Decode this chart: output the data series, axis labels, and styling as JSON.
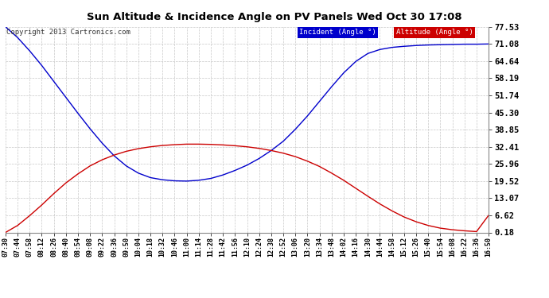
{
  "title": "Sun Altitude & Incidence Angle on PV Panels Wed Oct 30 17:08",
  "copyright": "Copyright 2013 Cartronics.com",
  "legend_incident": "Incident (Angle °)",
  "legend_altitude": "Altitude (Angle °)",
  "yticks": [
    0.18,
    6.62,
    13.07,
    19.52,
    25.96,
    32.41,
    38.85,
    45.3,
    51.74,
    58.19,
    64.64,
    71.08,
    77.53
  ],
  "ymin": 0.18,
  "ymax": 77.53,
  "bg_color": "#ffffff",
  "grid_color": "#c8c8c8",
  "incident_color": "#0000cc",
  "altitude_color": "#cc0000",
  "x_times": [
    "07:30",
    "07:44",
    "07:58",
    "08:12",
    "08:26",
    "08:40",
    "08:54",
    "09:08",
    "09:22",
    "09:36",
    "09:50",
    "10:04",
    "10:18",
    "10:32",
    "10:46",
    "11:00",
    "11:14",
    "11:28",
    "11:42",
    "11:56",
    "12:10",
    "12:24",
    "12:38",
    "12:52",
    "13:06",
    "13:20",
    "13:34",
    "13:48",
    "14:02",
    "14:16",
    "14:30",
    "14:44",
    "14:58",
    "15:12",
    "15:26",
    "15:40",
    "15:54",
    "16:08",
    "16:22",
    "16:36",
    "16:50"
  ],
  "incident_y": [
    77.53,
    73.5,
    68.5,
    63.0,
    57.0,
    51.0,
    45.0,
    39.2,
    33.8,
    29.0,
    25.2,
    22.5,
    20.8,
    20.0,
    19.6,
    19.5,
    19.8,
    20.5,
    21.8,
    23.5,
    25.5,
    28.0,
    31.0,
    34.5,
    39.0,
    44.0,
    49.5,
    55.0,
    60.2,
    64.5,
    67.5,
    69.0,
    69.8,
    70.2,
    70.5,
    70.7,
    70.8,
    70.9,
    71.0,
    71.0,
    71.08
  ],
  "altitude_y": [
    0.18,
    2.8,
    6.5,
    10.5,
    14.8,
    18.8,
    22.2,
    25.2,
    27.5,
    29.3,
    30.7,
    31.7,
    32.4,
    32.9,
    33.2,
    33.4,
    33.4,
    33.3,
    33.1,
    32.8,
    32.4,
    31.8,
    31.0,
    30.0,
    28.7,
    27.0,
    25.0,
    22.5,
    19.8,
    16.8,
    13.8,
    10.9,
    8.3,
    6.0,
    4.2,
    2.8,
    1.8,
    1.2,
    0.8,
    0.5,
    6.62
  ]
}
